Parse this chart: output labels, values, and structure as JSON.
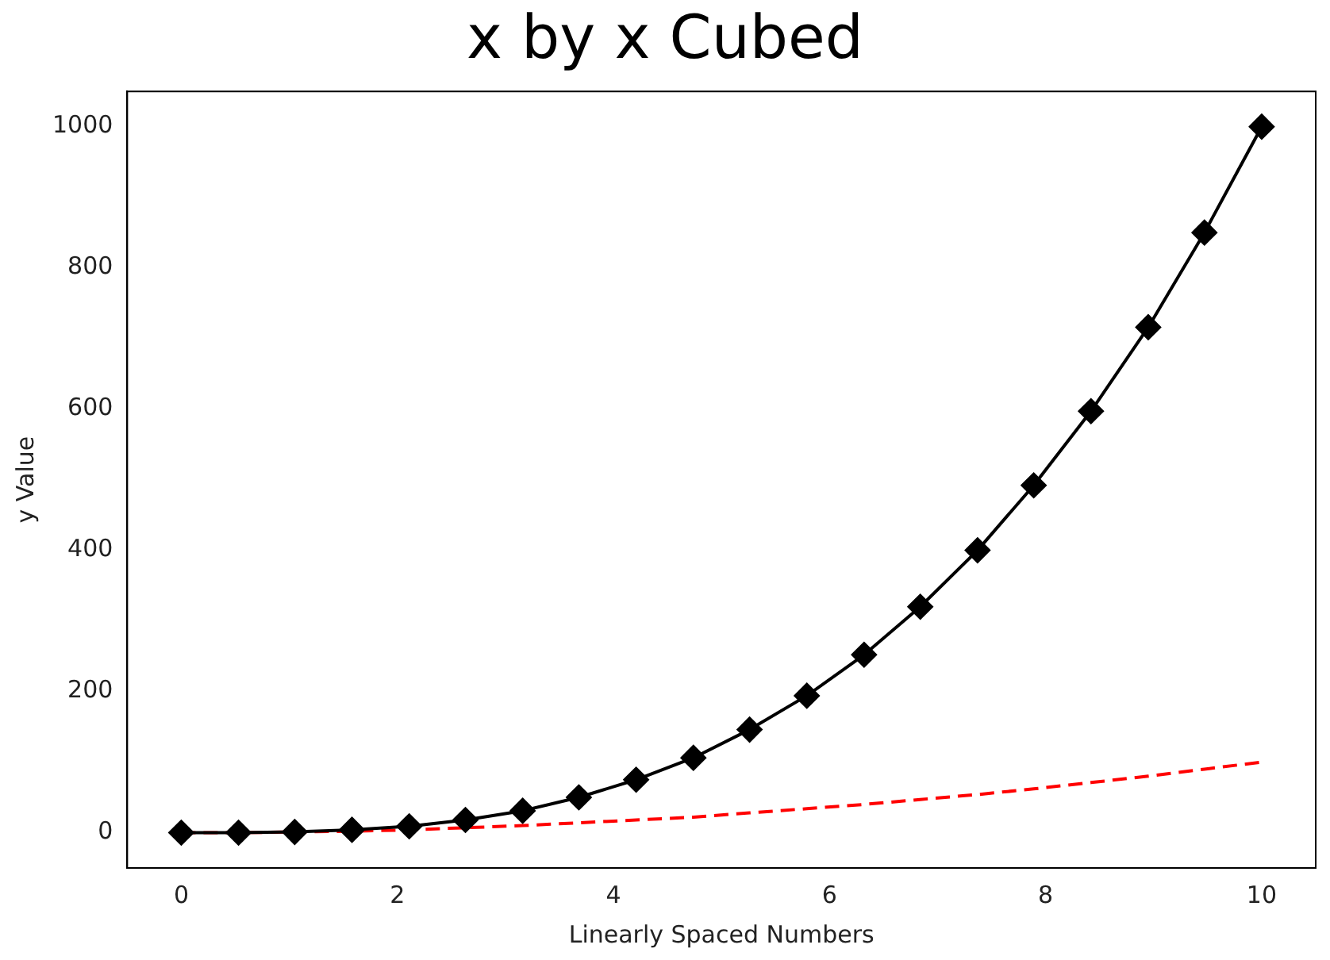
{
  "chart_data": {
    "type": "line",
    "title": "x by x Cubed",
    "xlabel": "Linearly Spaced Numbers",
    "ylabel": "y Value",
    "x": [
      0,
      0.53,
      1.05,
      1.58,
      2.11,
      2.63,
      3.16,
      3.68,
      4.21,
      4.74,
      5.26,
      5.79,
      6.32,
      6.84,
      7.37,
      7.89,
      8.42,
      8.95,
      9.47,
      10
    ],
    "series": [
      {
        "color": "#000000",
        "marker": "diamond",
        "line_style": "solid",
        "values": [
          0,
          0,
          1,
          4,
          9,
          18,
          31,
          50,
          75,
          106,
          146,
          194,
          252,
          320,
          400,
          492,
          597,
          716,
          850,
          1000
        ]
      },
      {
        "color": "#ff0000",
        "marker": "none",
        "line_style": "dashed",
        "values": [
          0,
          0,
          1,
          2,
          4,
          7,
          10,
          14,
          18,
          22,
          28,
          34,
          40,
          47,
          54,
          62,
          71,
          80,
          90,
          100
        ]
      }
    ],
    "xlim": [
      -0.5,
      10.5
    ],
    "xticks": [
      0,
      2,
      4,
      6,
      8,
      10
    ],
    "ylim": [
      -50,
      1050
    ],
    "yticks": [
      0,
      200,
      400,
      600,
      800,
      1000
    ],
    "grid": false,
    "legend": false
  }
}
